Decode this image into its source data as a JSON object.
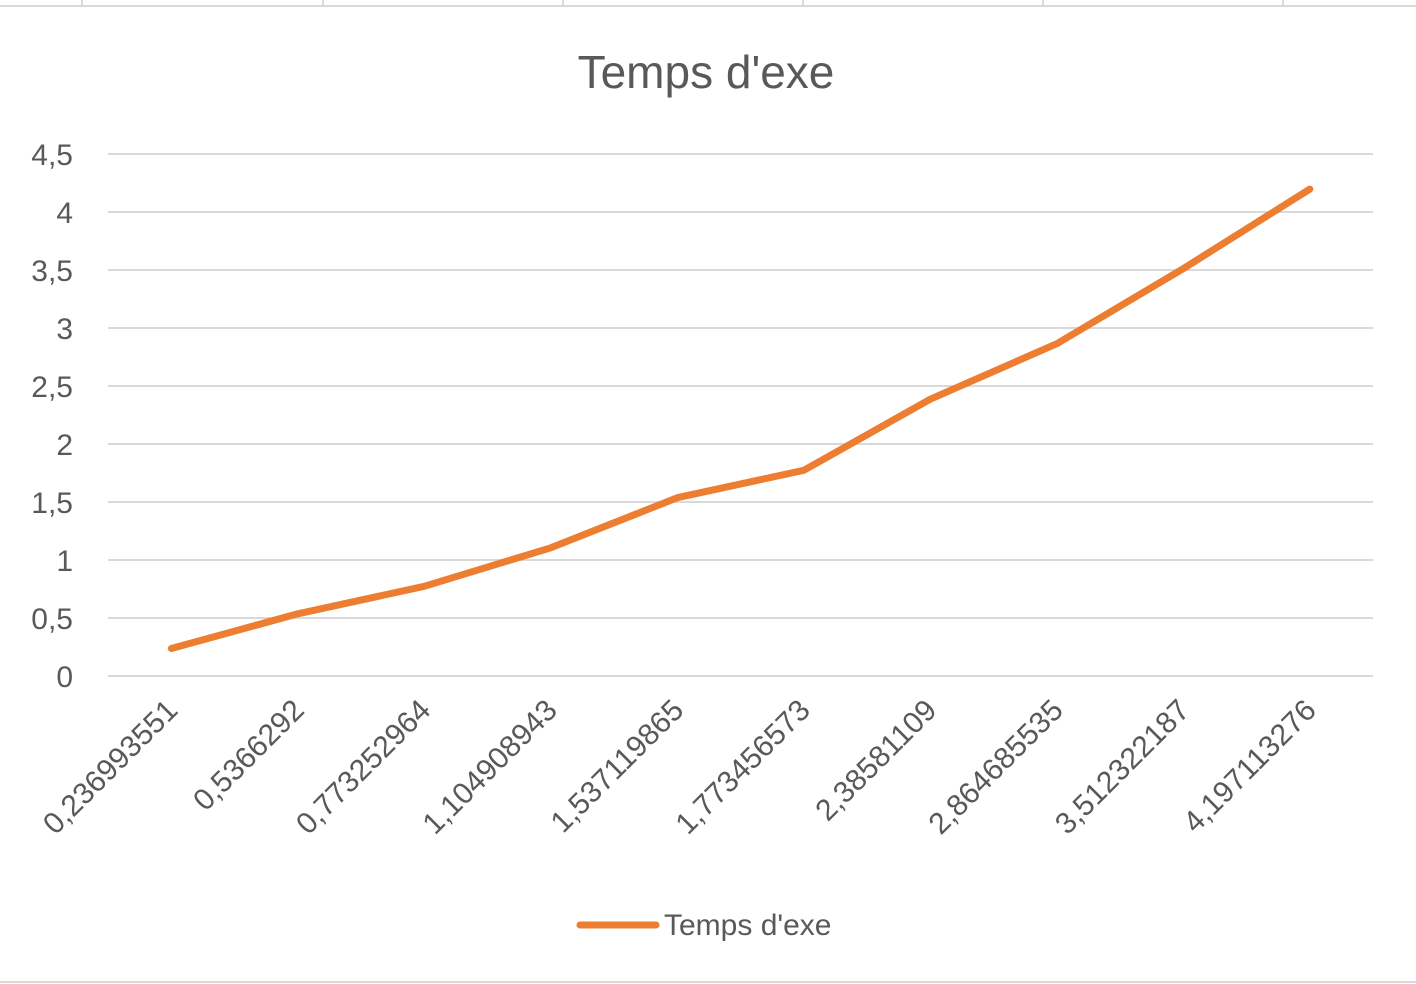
{
  "chart_data": {
    "type": "line",
    "title": "Temps d'exe",
    "xlabel": "",
    "ylabel": "",
    "categories": [
      "0,236993551",
      "0,5366292",
      "0,773252964",
      "1,104908943",
      "1,537119865",
      "1,773456573",
      "2,38581109",
      "2,864685535",
      "3,512322187",
      "4,197113276"
    ],
    "series": [
      {
        "name": "Temps d'exe",
        "color": "#ED7D31",
        "values": [
          0.236993551,
          0.5366292,
          0.773252964,
          1.104908943,
          1.537119865,
          1.773456573,
          2.38581109,
          2.864685535,
          3.512322187,
          4.197113276
        ]
      }
    ],
    "ylim": [
      0,
      4.5
    ],
    "yticks": [
      0,
      0.5,
      1,
      1.5,
      2,
      2.5,
      3,
      3.5,
      4,
      4.5
    ],
    "ytick_labels": [
      "0",
      "0,5",
      "1",
      "1,5",
      "2",
      "2,5",
      "3",
      "3,5",
      "4",
      "4,5"
    ],
    "grid": true,
    "legend_position": "bottom",
    "colors": {
      "gridline": "#D9D9D9",
      "text": "#595959",
      "frame": "#D9D9D9"
    }
  }
}
